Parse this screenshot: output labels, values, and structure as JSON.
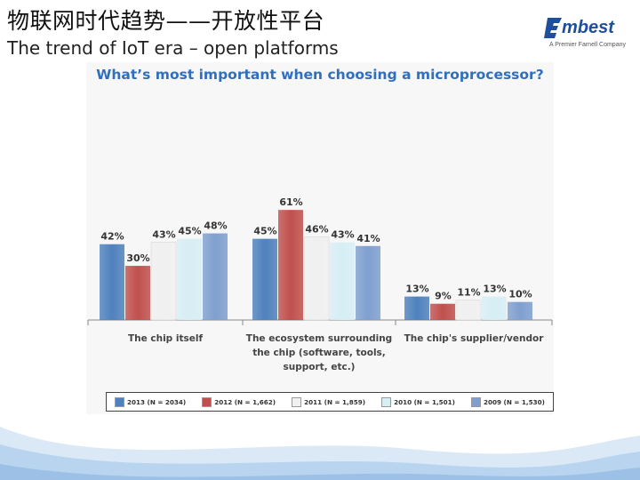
{
  "slide": {
    "title_cn": "物联网时代趋势——开放性平台",
    "title_en": "The trend of IoT era – open platforms"
  },
  "logo": {
    "wordmark": "mbest",
    "tagline": "A Premier Farnell Company"
  },
  "chart_data": {
    "type": "bar",
    "title": "What’s most important when choosing a microprocessor?",
    "categories": [
      [
        "The chip itself"
      ],
      [
        "The ecosystem surrounding",
        "the chip (software, tools,",
        "support, etc.)"
      ],
      [
        "The chip's supplier/vendor"
      ]
    ],
    "series": [
      {
        "name": "2013 (N = 2034)",
        "color": "#4f81bd",
        "values": [
          42,
          45,
          13
        ]
      },
      {
        "name": "2012 (N = 1,662)",
        "color": "#c0504d",
        "values": [
          30,
          61,
          9
        ]
      },
      {
        "name": "2011 (N = 1,859)",
        "color": "#f0f0f0",
        "values": [
          43,
          46,
          11
        ]
      },
      {
        "name": "2010 (N = 1,501)",
        "color": "#d7eef5",
        "values": [
          45,
          43,
          13
        ]
      },
      {
        "name": "2009 (N = 1,530)",
        "color": "#7f9fcf",
        "values": [
          48,
          41,
          10
        ]
      }
    ],
    "value_suffix": "%",
    "ylim": [
      0,
      70
    ],
    "grid": false,
    "legend_position": "bottom"
  }
}
